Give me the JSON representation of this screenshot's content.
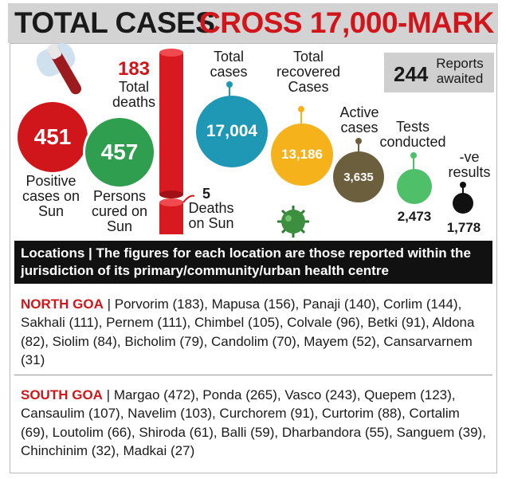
{
  "headline": {
    "part1": "TOTAL CASES",
    "part2": "CROSS 17,000-MARK"
  },
  "stats": {
    "positive": {
      "value": "451",
      "label": "Positive cases on Sun"
    },
    "cured": {
      "value": "457",
      "label": "Persons cured on Sun"
    },
    "deaths_total": {
      "value": "183",
      "label": "Total deaths"
    },
    "deaths_sun": {
      "value": "5",
      "label": "Deaths on Sun"
    },
    "total_cases": {
      "value": "17,004",
      "label": "Total cases"
    },
    "recovered": {
      "value": "13,186",
      "label": "Total recovered Cases"
    },
    "active": {
      "value": "3,635",
      "label": "Active cases"
    },
    "tests": {
      "value": "2,473",
      "label": "Tests conducted"
    },
    "negative": {
      "value": "1,778",
      "label": "-ve results"
    },
    "reports": {
      "value": "244",
      "label": "Reports awaited"
    }
  },
  "colors": {
    "red": "#d1161b",
    "green": "#2f9e4f",
    "teal": "#1f98b6",
    "yellow": "#f5b21b",
    "olive": "#6b5f3e",
    "lightgreen": "#4fbf6a",
    "black": "#111111"
  },
  "locations": {
    "header": "Locations | The figures for each location are those reported within the jurisdiction of its primary/community/urban health centre",
    "north": {
      "name": "NORTH GOA",
      "text": " | Porvorim (183), Mapusa (156), Panaji (140), Corlim (144), Sakhali (111), Pernem (111), Chimbel (105), Colvale (96), Betki (91), Aldona (82), Siolim (84), Bicholim (79), Candolim (70), Mayem (52), Cansarvarnem (31)"
    },
    "south": {
      "name": "SOUTH GOA",
      "text": " | Margao (472), Ponda (265), Vasco (243), Quepem (123), Cansaulim (107), Navelim (103), Curchorem (91), Curtorim (88), Cortalim (69), Loutolim (66), Shiroda (61), Balli (59), Dharbandora (55), Sanguem (39), Chinchinim (32), Madkai (27)"
    }
  }
}
